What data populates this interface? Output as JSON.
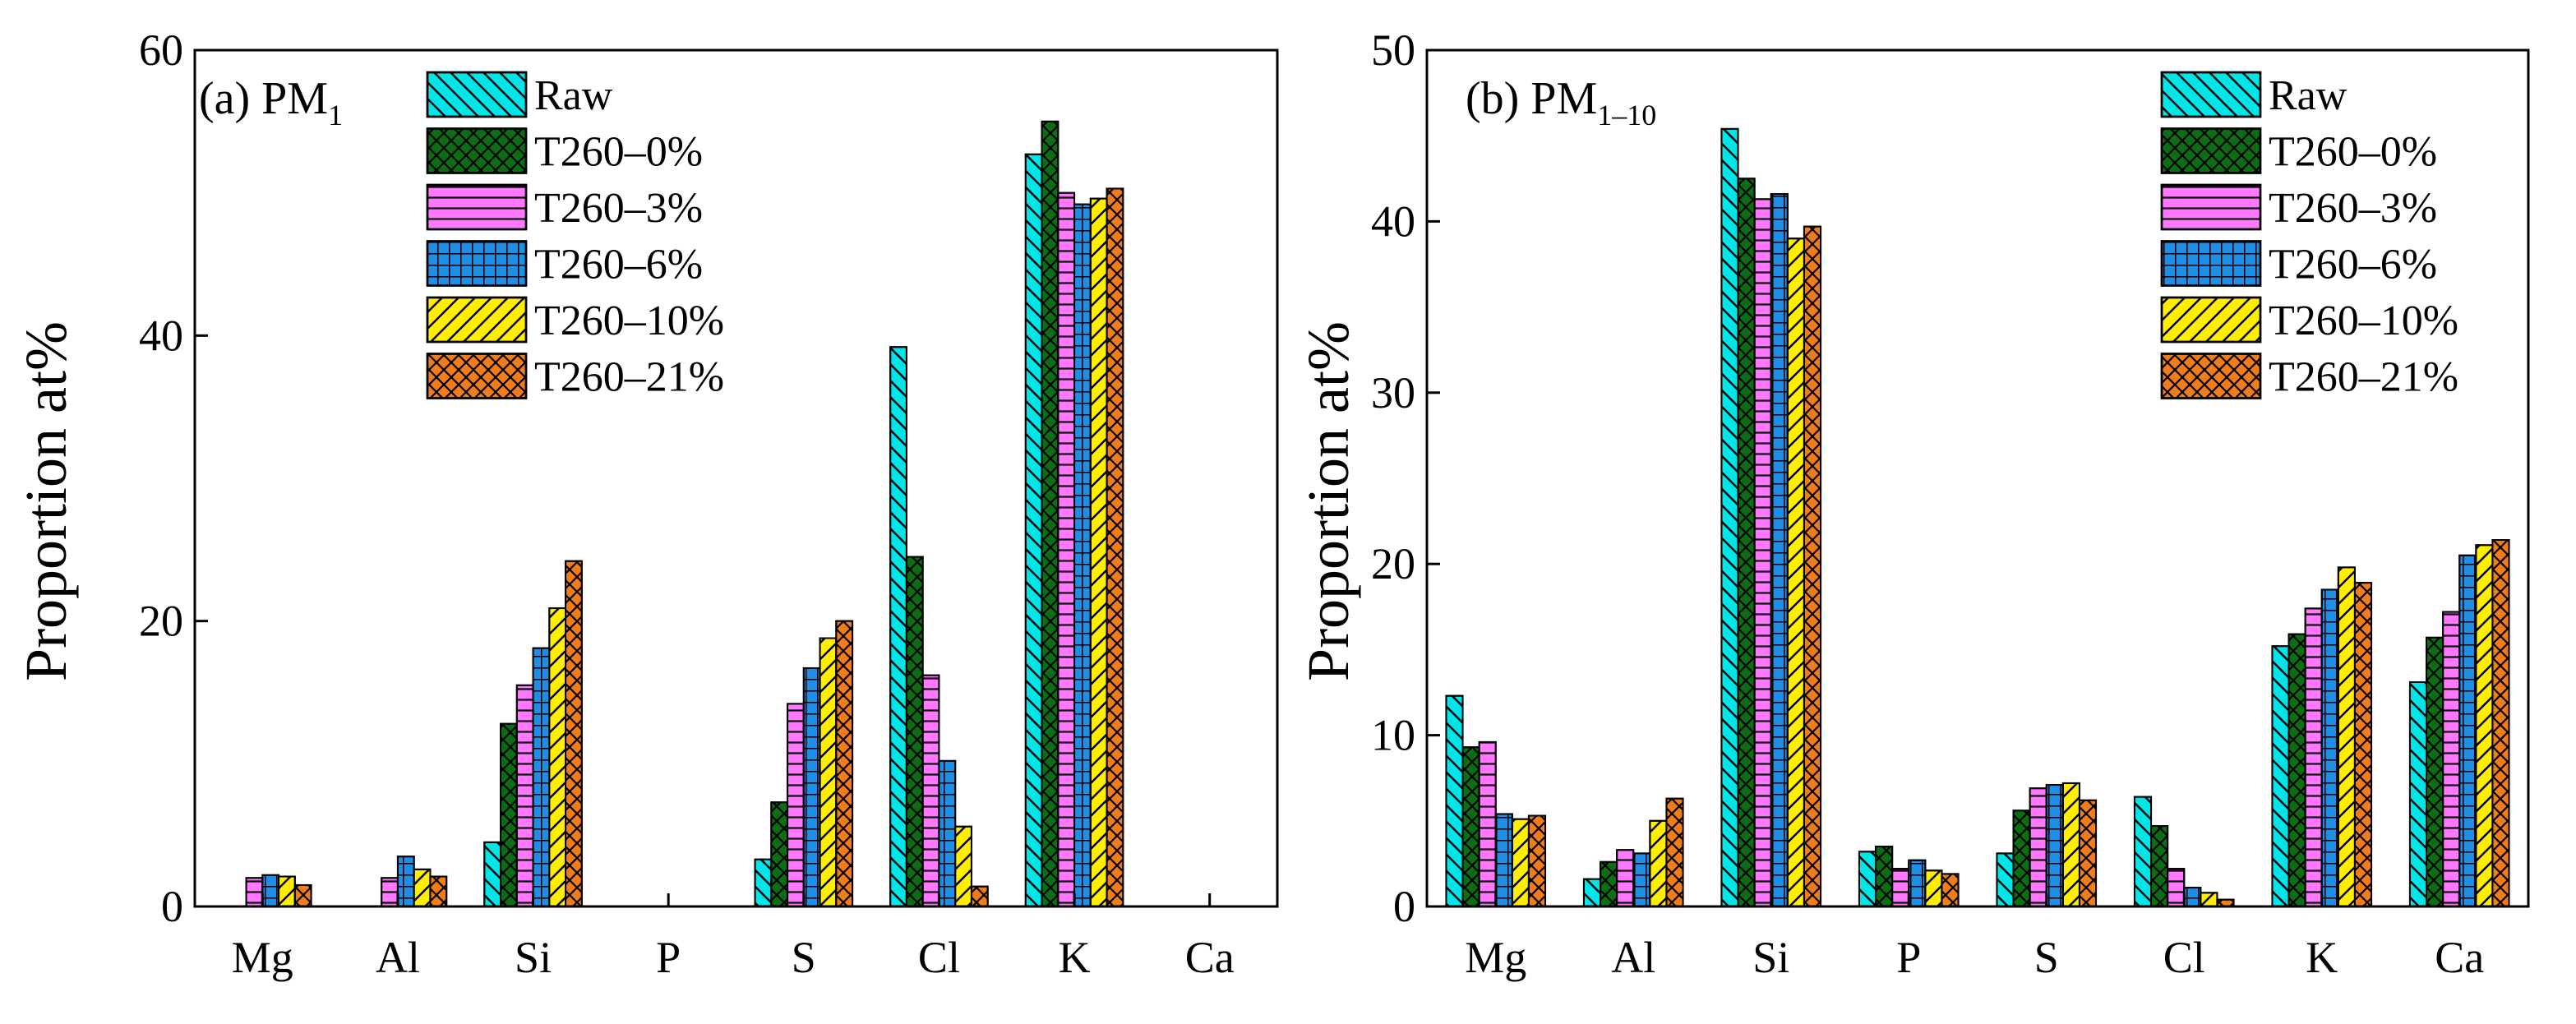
{
  "chart_data": [
    {
      "type": "bar",
      "panel_label": "(a) PM",
      "panel_label_sub": "1",
      "ylabel": "Proportion at%",
      "xlabel": "",
      "ylim": [
        0,
        60
      ],
      "yticks": [
        0,
        20,
        40,
        60
      ],
      "legend_position": "top-center",
      "categories": [
        "Mg",
        "Al",
        "Si",
        "P",
        "S",
        "Cl",
        "K",
        "Ca"
      ],
      "series": [
        {
          "name": "Raw",
          "values": [
            0,
            0,
            4.5,
            0,
            3.3,
            39.2,
            52.7,
            0
          ]
        },
        {
          "name": "T260–0%",
          "values": [
            0,
            0,
            12.8,
            0,
            7.3,
            24.5,
            55.0,
            0
          ]
        },
        {
          "name": "T260–3%",
          "values": [
            2.0,
            2.0,
            15.5,
            0,
            14.2,
            16.2,
            50.0,
            0
          ]
        },
        {
          "name": "T260–6%",
          "values": [
            2.2,
            3.5,
            18.1,
            0,
            16.7,
            10.2,
            49.2,
            0
          ]
        },
        {
          "name": "T260–10%",
          "values": [
            2.1,
            2.6,
            20.9,
            0,
            18.8,
            5.6,
            49.6,
            0
          ]
        },
        {
          "name": "T260–21%",
          "values": [
            1.5,
            2.1,
            24.2,
            0,
            20.0,
            1.4,
            50.3,
            0
          ]
        }
      ]
    },
    {
      "type": "bar",
      "panel_label": "(b) PM",
      "panel_label_sub": "1–10",
      "ylabel": "Proportion at%",
      "xlabel": "",
      "ylim": [
        0,
        50
      ],
      "yticks": [
        0,
        10,
        20,
        30,
        40,
        50
      ],
      "legend_position": "top-right",
      "categories": [
        "Mg",
        "Al",
        "Si",
        "P",
        "S",
        "Cl",
        "K",
        "Ca"
      ],
      "series": [
        {
          "name": "Raw",
          "values": [
            12.3,
            1.6,
            45.4,
            3.2,
            3.1,
            6.4,
            15.2,
            13.1
          ]
        },
        {
          "name": "T260–0%",
          "values": [
            9.3,
            2.6,
            42.5,
            3.5,
            5.6,
            4.7,
            15.9,
            15.7
          ]
        },
        {
          "name": "T260–3%",
          "values": [
            9.6,
            3.3,
            41.3,
            2.2,
            6.9,
            2.2,
            17.4,
            17.2
          ]
        },
        {
          "name": "T260–6%",
          "values": [
            5.4,
            3.1,
            41.6,
            2.7,
            7.1,
            1.1,
            18.5,
            20.5
          ]
        },
        {
          "name": "T260–10%",
          "values": [
            5.1,
            5.0,
            39.0,
            2.1,
            7.2,
            0.8,
            19.8,
            21.1
          ]
        },
        {
          "name": "T260–21%",
          "values": [
            5.3,
            6.3,
            39.7,
            1.9,
            6.2,
            0.4,
            18.9,
            21.4
          ]
        }
      ]
    }
  ],
  "series_style": [
    {
      "color": "#00e5e8",
      "pattern": "back-diagonal"
    },
    {
      "color": "#0b6e12",
      "pattern": "crosshatch"
    },
    {
      "color": "#ff78ff",
      "pattern": "horizontal"
    },
    {
      "color": "#1f8fe6",
      "pattern": "grid"
    },
    {
      "color": "#ffee00",
      "pattern": "forward-diagonal"
    },
    {
      "color": "#f07d1a",
      "pattern": "crosshatch"
    }
  ]
}
